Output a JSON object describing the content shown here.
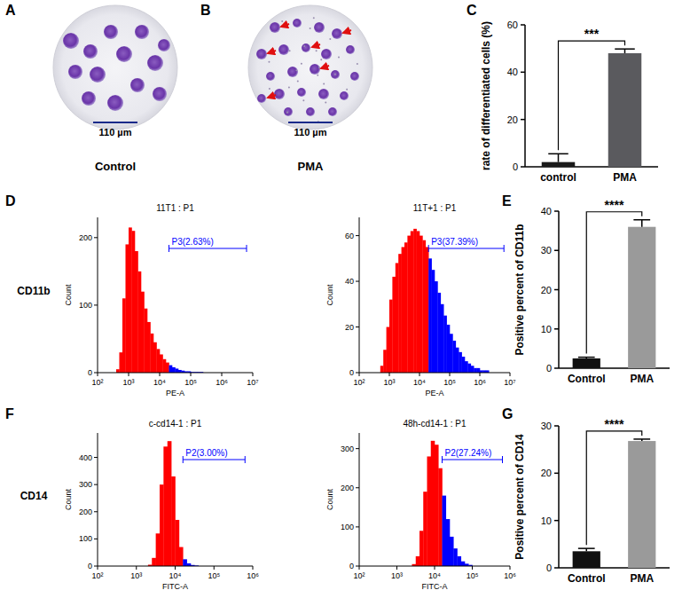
{
  "figure": {
    "panel_letters": [
      "A",
      "B",
      "C",
      "D",
      "E",
      "F",
      "G"
    ],
    "row_labels": [
      "CD11b",
      "CD14"
    ]
  },
  "micrographs": [
    {
      "caption": "Control",
      "scale_bar": "110 µm"
    },
    {
      "caption": "PMA",
      "scale_bar": "110 µm"
    }
  ],
  "chart_data": [
    {
      "type": "bar",
      "y_label": "rate of differentiated cells (%)",
      "categories": [
        "control",
        "PMA"
      ],
      "values": [
        2,
        48
      ],
      "errors": [
        3.5,
        1.8
      ],
      "colors": [
        "#1a1a1a",
        "#5a5a5e"
      ],
      "ylim": [
        0,
        60
      ],
      "yticks": [
        0,
        20,
        40,
        60
      ],
      "annotation": "***"
    },
    {
      "type": "histogram",
      "title": "11T1 : P1",
      "x_label": "PE-A",
      "y_label": "Count",
      "log": "x",
      "color": "#ff0000",
      "xlim": [
        100,
        10000000
      ],
      "xticks": [
        {
          "value": 100,
          "label": "10²"
        },
        {
          "value": 1000,
          "label": "10³"
        },
        {
          "value": 10000,
          "label": "10⁴"
        },
        {
          "value": 100000,
          "label": "10⁵"
        },
        {
          "value": 1000000,
          "label": "10⁶"
        },
        {
          "value": 10000000,
          "label": "10⁷"
        }
      ],
      "ylim": [
        0,
        230
      ],
      "yticks": [
        0,
        100,
        200
      ],
      "bins": [
        398,
        501,
        631,
        794,
        1000,
        1259,
        1585,
        1995,
        2512,
        3162,
        3981,
        5012,
        6310,
        7943,
        10000,
        12589,
        15849,
        19953,
        25119,
        31623,
        39811,
        50119,
        63096,
        79433,
        100000,
        125893,
        158489,
        199526,
        251189
      ],
      "counts": [
        5,
        30,
        110,
        190,
        215,
        210,
        180,
        150,
        120,
        95,
        75,
        58,
        45,
        35,
        27,
        20,
        15,
        11,
        8,
        6,
        4,
        3,
        2,
        2,
        1,
        1,
        1,
        1
      ],
      "gate": {
        "label": "P3(2.63%)",
        "range": [
          19953,
          6309573
        ],
        "color": "#0000ff"
      }
    },
    {
      "type": "histogram",
      "title": "11T+1 : P1",
      "x_label": "PE-A",
      "y_label": "Count",
      "log": "x",
      "color": "#ff0000",
      "xlim": [
        100,
        10000000
      ],
      "xticks": [
        {
          "value": 100,
          "label": "10²"
        },
        {
          "value": 1000,
          "label": "10³"
        },
        {
          "value": 10000,
          "label": "10⁴"
        },
        {
          "value": 100000,
          "label": "10⁵"
        },
        {
          "value": 1000000,
          "label": "10⁶"
        },
        {
          "value": 10000000,
          "label": "10⁷"
        }
      ],
      "ylim": [
        0,
        68
      ],
      "yticks": [
        0,
        20,
        40,
        60
      ],
      "bins": [
        501,
        631,
        794,
        1000,
        1259,
        1585,
        1995,
        2512,
        3162,
        3981,
        5012,
        6310,
        7943,
        10000,
        12589,
        15849,
        19953,
        25119,
        31623,
        39811,
        50119,
        63096,
        79433,
        100000,
        125893,
        158489,
        199526,
        251189,
        316228,
        398107,
        501187,
        630957,
        794328,
        1000000,
        1258925,
        1584893,
        1995262
      ],
      "counts": [
        3,
        10,
        20,
        32,
        42,
        48,
        52,
        55,
        57,
        60,
        62,
        63,
        62,
        60,
        58,
        55,
        50,
        45,
        40,
        35,
        30,
        25,
        21,
        17,
        14,
        11,
        9,
        7,
        5,
        4,
        3,
        2,
        2,
        1,
        1,
        1
      ],
      "gate": {
        "label": "P3(37.39%)",
        "range": [
          19953,
          6309573
        ],
        "color": "#0000ff"
      }
    },
    {
      "type": "bar",
      "y_label": "Positive percent of CD11b",
      "categories": [
        "Control",
        "PMA"
      ],
      "values": [
        2.5,
        36
      ],
      "errors": [
        0.3,
        1.8
      ],
      "colors": [
        "#111111",
        "#9a9a9a"
      ],
      "ylim": [
        0,
        40
      ],
      "yticks": [
        0,
        10,
        20,
        30,
        40
      ],
      "annotation": "****"
    },
    {
      "type": "histogram",
      "title": "c-cd14-1 : P1",
      "x_label": "FITC-A",
      "y_label": "Count",
      "log": "x",
      "color": "#ff0000",
      "xlim": [
        100,
        1000000
      ],
      "xticks": [
        {
          "value": 100,
          "label": "10²"
        },
        {
          "value": 1000,
          "label": "10³"
        },
        {
          "value": 10000,
          "label": "10⁴"
        },
        {
          "value": 100000,
          "label": "10⁵"
        },
        {
          "value": 1000000,
          "label": "10⁶"
        }
      ],
      "ylim": [
        0,
        490
      ],
      "yticks": [
        0,
        100,
        200,
        300,
        400
      ],
      "bins": [
        1995,
        2512,
        3162,
        3981,
        5012,
        6310,
        7943,
        10000,
        12589,
        15849,
        19953,
        25119,
        31623,
        39811
      ],
      "counts": [
        5,
        30,
        120,
        300,
        440,
        460,
        330,
        170,
        70,
        25,
        10,
        4,
        2
      ],
      "gate": {
        "label": "P2(3.00%)",
        "range": [
          15849,
          630957
        ],
        "color": "#0000ff"
      }
    },
    {
      "type": "histogram",
      "title": "48h-cd14-1 : P1",
      "x_label": "FITC-A",
      "y_label": "Count",
      "log": "x",
      "color": "#ff0000",
      "xlim": [
        100,
        1000000
      ],
      "xticks": [
        {
          "value": 100,
          "label": "10²"
        },
        {
          "value": 1000,
          "label": "10³"
        },
        {
          "value": 10000,
          "label": "10⁴"
        },
        {
          "value": 100000,
          "label": "10⁵"
        },
        {
          "value": 1000000,
          "label": "10⁶"
        }
      ],
      "ylim": [
        0,
        340
      ],
      "yticks": [
        0,
        100,
        200,
        300
      ],
      "bins": [
        2512,
        3162,
        3981,
        5012,
        6310,
        7943,
        10000,
        12589,
        15849,
        19953,
        25119,
        31623,
        39811,
        50119,
        63096,
        79433,
        100000
      ],
      "counts": [
        5,
        25,
        90,
        190,
        280,
        320,
        310,
        250,
        180,
        120,
        75,
        45,
        25,
        12,
        6,
        3
      ],
      "gate": {
        "label": "P2(27.24%)",
        "range": [
          15849,
          630957
        ],
        "color": "#0000ff"
      }
    },
    {
      "type": "bar",
      "y_label": "Positive percent of CD14",
      "categories": [
        "Control",
        "PMA"
      ],
      "values": [
        3.5,
        26.8
      ],
      "errors": [
        0.6,
        0.4
      ],
      "colors": [
        "#111111",
        "#9a9a9a"
      ],
      "ylim": [
        0,
        30
      ],
      "yticks": [
        0,
        10,
        20,
        30
      ],
      "annotation": "****"
    }
  ]
}
